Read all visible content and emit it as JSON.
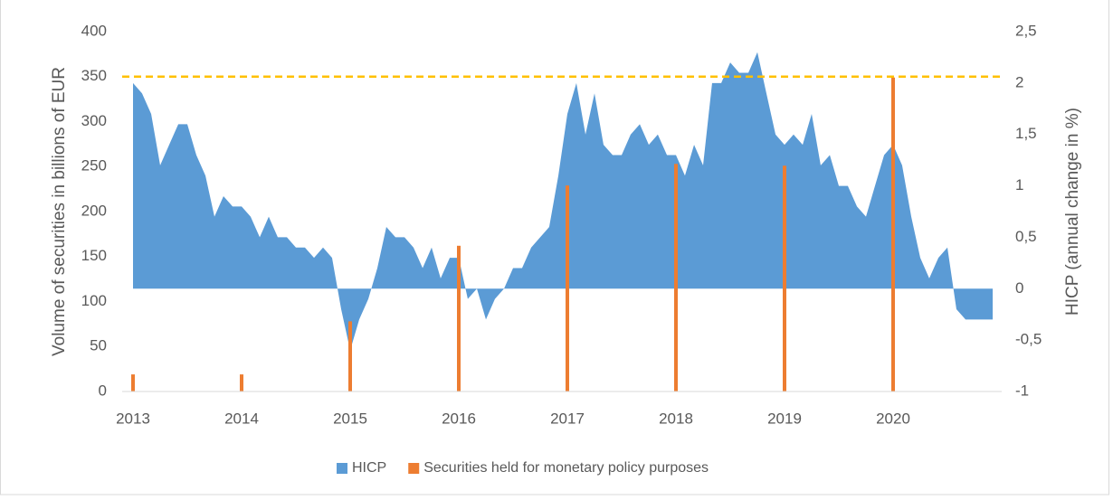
{
  "chart_data": {
    "type": "combo",
    "y_label": "Volume of securities in billions of EUR",
    "y2_label": "HICP (annual change in %)",
    "xlim": [
      2013,
      2021
    ],
    "xticks": [
      2013,
      2014,
      2015,
      2016,
      2017,
      2018,
      2019,
      2020
    ],
    "ylim": [
      0,
      400
    ],
    "yticks": [
      0,
      50,
      100,
      150,
      200,
      250,
      300,
      350,
      400
    ],
    "y2lim": [
      -1,
      2.5
    ],
    "y2ticks": [
      -1,
      {
        "value": -0.5,
        "label": "-0,5"
      },
      0,
      {
        "value": 0.5,
        "label": "0,5"
      },
      1,
      {
        "value": 1.5,
        "label": "1,5"
      },
      2,
      {
        "value": 2.5,
        "label": "2,5"
      }
    ],
    "reference_line": {
      "value": 350,
      "color": "#ffc000"
    },
    "legend": "bottom",
    "series": [
      {
        "name": "HICP",
        "type": "area",
        "axis": "y2",
        "color": "#5b9bd5",
        "x": [
          2013,
          2013.083,
          2013.167,
          2013.25,
          2013.333,
          2013.417,
          2013.5,
          2013.583,
          2013.667,
          2013.75,
          2013.833,
          2013.917,
          2014,
          2014.083,
          2014.167,
          2014.25,
          2014.333,
          2014.417,
          2014.5,
          2014.583,
          2014.667,
          2014.75,
          2014.833,
          2014.917,
          2015,
          2015.083,
          2015.167,
          2015.25,
          2015.333,
          2015.417,
          2015.5,
          2015.583,
          2015.667,
          2015.75,
          2015.833,
          2015.917,
          2016,
          2016.083,
          2016.167,
          2016.25,
          2016.333,
          2016.417,
          2016.5,
          2016.583,
          2016.667,
          2016.75,
          2016.833,
          2016.917,
          2017,
          2017.083,
          2017.167,
          2017.25,
          2017.333,
          2017.417,
          2017.5,
          2017.583,
          2017.667,
          2017.75,
          2017.833,
          2017.917,
          2018,
          2018.083,
          2018.167,
          2018.25,
          2018.333,
          2018.417,
          2018.5,
          2018.583,
          2018.667,
          2018.75,
          2018.833,
          2018.917,
          2019,
          2019.083,
          2019.167,
          2019.25,
          2019.333,
          2019.417,
          2019.5,
          2019.583,
          2019.667,
          2019.75,
          2019.833,
          2019.917,
          2020,
          2020.083,
          2020.167,
          2020.25,
          2020.333,
          2020.417,
          2020.5,
          2020.583,
          2020.667,
          2020.75,
          2020.833,
          2020.917
        ],
        "values": [
          2.0,
          1.9,
          1.7,
          1.2,
          1.4,
          1.6,
          1.6,
          1.3,
          1.1,
          0.7,
          0.9,
          0.8,
          0.8,
          0.7,
          0.5,
          0.7,
          0.5,
          0.5,
          0.4,
          0.4,
          0.3,
          0.4,
          0.3,
          -0.2,
          -0.6,
          -0.3,
          -0.1,
          0.2,
          0.6,
          0.5,
          0.5,
          0.4,
          0.2,
          0.4,
          0.1,
          0.3,
          0.3,
          -0.1,
          0.0,
          -0.3,
          -0.1,
          0.0,
          0.2,
          0.2,
          0.4,
          0.5,
          0.6,
          1.1,
          1.7,
          2.0,
          1.5,
          1.9,
          1.4,
          1.3,
          1.3,
          1.5,
          1.6,
          1.4,
          1.5,
          1.3,
          1.3,
          1.1,
          1.4,
          1.2,
          2.0,
          2.0,
          2.2,
          2.1,
          2.1,
          2.3,
          1.9,
          1.5,
          1.4,
          1.5,
          1.4,
          1.7,
          1.2,
          1.3,
          1.0,
          1.0,
          0.8,
          0.7,
          1.0,
          1.3,
          1.4,
          1.2,
          0.7,
          0.3,
          0.1,
          0.3,
          0.4,
          -0.2,
          -0.3,
          -0.3,
          -0.3,
          -0.3
        ]
      },
      {
        "name": "Securities held for monetary policy purposes",
        "type": "bar",
        "color": "#ed7d31",
        "x": [
          2013,
          2014,
          2015,
          2016,
          2017,
          2018,
          2019,
          2020
        ],
        "values": [
          19,
          19,
          78,
          162,
          229,
          253,
          251,
          349
        ]
      }
    ]
  }
}
